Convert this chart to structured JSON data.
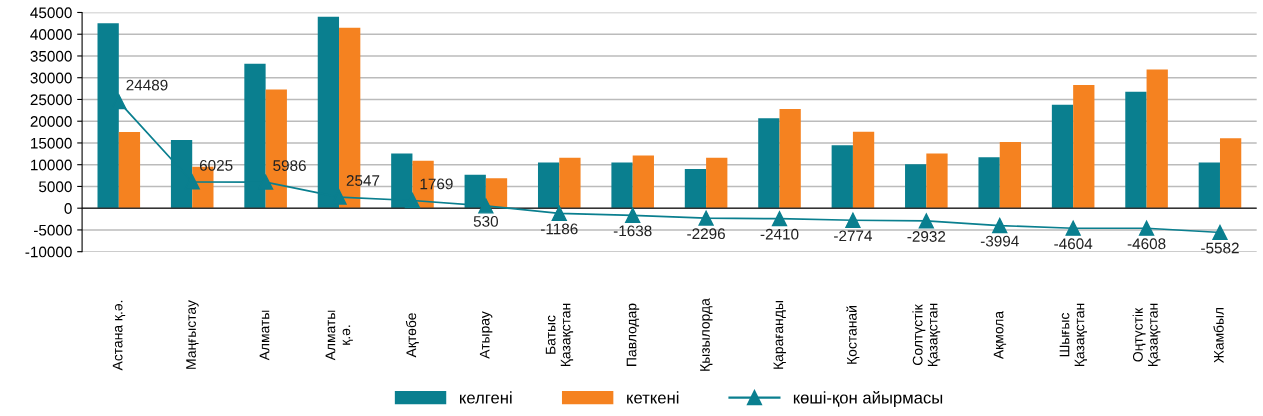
{
  "chart_data": {
    "type": "bar",
    "categories": [
      "Астана қ.ә.",
      "Маңғыстау",
      "Алматы",
      "Алматы\nқ.ә.",
      "Ақтөбе",
      "Атырау",
      "Батыс\nҚазақстан",
      "Павлодар",
      "Қызылорда",
      "Қарағанды",
      "Қостанай",
      "Солтүстік\nҚазақстан",
      "Ақмола",
      "Шығыс\nҚазақстан",
      "Оңтүстік\nҚазақстан",
      "Жамбыл"
    ],
    "series": [
      {
        "name": "келгені",
        "color": "#0a7f8f",
        "values": [
          42500,
          15700,
          33200,
          44000,
          12600,
          7700,
          10500,
          10500,
          9000,
          20700,
          14500,
          10100,
          11700,
          23800,
          26800,
          10500
        ]
      },
      {
        "name": "кеткені",
        "color": "#f58220",
        "values": [
          17500,
          9500,
          27300,
          41500,
          10900,
          6900,
          11600,
          12100,
          11600,
          22800,
          17600,
          12600,
          15200,
          28300,
          31900,
          16100
        ]
      },
      {
        "name": "көші-қон айырмасы",
        "type": "line",
        "color": "#0a7f8f",
        "marker": "triangle",
        "values": [
          24489,
          6025,
          5986,
          2547,
          1769,
          530,
          -1186,
          -1638,
          -2296,
          -2410,
          -2774,
          -2932,
          -3994,
          -4604,
          -4608,
          -5582
        ],
        "value_labels": [
          "24489",
          "6025",
          "5986",
          "2547",
          "1769",
          "530",
          "-1186",
          "-1638",
          "-2296",
          "-2410",
          "-2774",
          "-2932",
          "-3994",
          "-4604",
          "-4608",
          "-5582"
        ]
      }
    ],
    "ylim": [
      -10000,
      45000
    ],
    "yticks": [
      -10000,
      -5000,
      0,
      5000,
      10000,
      15000,
      20000,
      25000,
      30000,
      35000,
      40000,
      45000
    ],
    "grid": "y",
    "legend": "bottom"
  }
}
